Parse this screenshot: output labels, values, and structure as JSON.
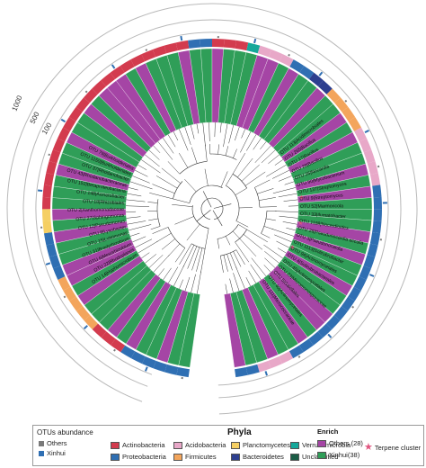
{
  "scale_labels": [
    "1000",
    "500",
    "100"
  ],
  "colors": {
    "Actinobacteria": "#d33b4e",
    "Proteobacteria": "#2f6fb3",
    "Acidobacteria": "#e8a8c8",
    "Firmicutes": "#f3a55c",
    "Planctomycetes": "#f5cf63",
    "Bacteroidetes": "#2d3f8f",
    "Verrucomicrobia": "#14a89a",
    "Unclassified": "#1a5c45",
    "enrich_others": "#a545a5",
    "enrich_xinhui": "#2f9e58",
    "abundance_others": "#7a7a7a",
    "abundance_xinhui": "#2f6fb3",
    "terpene": "#e0557f"
  },
  "legend": {
    "abundance_title": "OTUs abundance",
    "abundance_items": [
      "Others",
      "Xinhui"
    ],
    "phyla_title": "Phyla",
    "phyla_items": [
      "Actinobacteria",
      "Proteobacteria",
      "Acidobacteria",
      "Firmicutes",
      "Planctomycetes",
      "Bacteroidetes",
      "Verrucomicrobia",
      "Unclassified"
    ],
    "enrich_title": "Enrich",
    "enrich_items": [
      "Others (28)",
      "Xinhui(38)"
    ],
    "terpene_label": "Terpene cluster"
  },
  "leaf_labels": {
    "right": [
      "OTU 113|Acidimicrobiales",
      "OTU 265|Bacillus",
      "OTU 17|Bacillus",
      "OTU 28|Bacillus",
      "OTU 26|Nocardia",
      "OTU 90|Mycobacterium",
      "OTU 137|Streptomyces",
      "OTU 9|Streptomyces",
      "OTU 52|Marmoricola",
      "OTU 33|Ilumatobacter",
      "OTU 1188|Nocardioides",
      "OTU 28|Pseudonocardia ecculia",
      "OTU 3|Pseudonocardia",
      "OTU 1113|Solirubrobacter",
      "OTU 94|Actinomycetales",
      "OTU 4|Solirubrobacterales",
      "OTU 45|Actinomycetales",
      "OTU 23|Micromonosporaceae",
      "OTU 5|Gaiellales",
      "OTU 40|Actinomycetales",
      "OTU 111|Micrococcaceae"
    ],
    "left": [
      "OTU 79|Burkholderiales",
      "OTU 1150|Burkholderiales",
      "OTU 37|Rhodanobacter",
      "OTU 43|Rhodanobacteraceae",
      "OTU 152|Betaproteobacteria",
      "OTU 148|Acinetobacter",
      "OTU 18|Rhizobiales",
      "OTU 2|Xanthomonadaceae",
      "OTU 27|Sphingomonas",
      "OTU 12|Pseudomonas",
      "OTU 8|Lysobacter",
      "OTU 15|Luteimonas",
      "OTU 31|Bradyrhizobium",
      "OTU 6|Mesorhizobium",
      "OTU 22|Rhodoplanes",
      "OTU 14|Hyphomicrobium"
    ]
  }
}
